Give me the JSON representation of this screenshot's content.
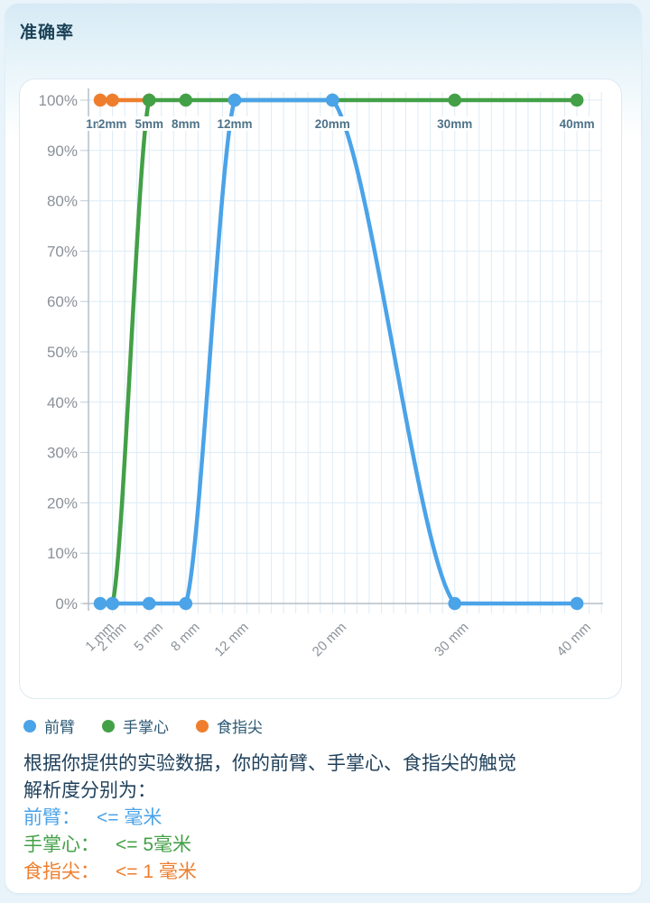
{
  "header": {
    "title": "准确率"
  },
  "chart_data": {
    "type": "line",
    "title": "准确率",
    "xlabel": "",
    "ylabel": "",
    "x_unit": "mm",
    "x": [
      1,
      2,
      5,
      8,
      12,
      20,
      30,
      40
    ],
    "x_tick_labels": [
      "1 mm",
      "2 mm",
      "5 mm",
      "8 mm",
      "12 mm",
      "20 mm",
      "30 mm",
      "40 mm"
    ],
    "point_labels": [
      "1mm",
      "2mm",
      "5mm",
      "8mm",
      "12mm",
      "20mm",
      "30mm",
      "40mm"
    ],
    "y_tick_labels": [
      "0%",
      "10%",
      "20%",
      "30%",
      "40%",
      "50%",
      "60%",
      "70%",
      "80%",
      "90%",
      "100%"
    ],
    "ylim": [
      0,
      100
    ],
    "xlim": [
      0,
      42
    ],
    "grid": true,
    "x_axis_scale": "linear-mm",
    "legend_position": "bottom",
    "series": [
      {
        "id": "forearm",
        "name": "前臂",
        "color": "#4ba3e8",
        "values": [
          0,
          0,
          0,
          0,
          100,
          100,
          0,
          0
        ]
      },
      {
        "id": "palm",
        "name": "手掌心",
        "color": "#43a047",
        "values": [
          null,
          0,
          100,
          100,
          100,
          100,
          100,
          100
        ]
      },
      {
        "id": "fingertip",
        "name": "食指尖",
        "color": "#ee7e2d",
        "values": [
          100,
          100,
          100,
          null,
          null,
          null,
          null,
          null
        ]
      }
    ]
  },
  "legend": {
    "items": [
      {
        "id": "forearm",
        "label": "前臂",
        "color": "#4ba3e8"
      },
      {
        "id": "palm",
        "label": "手掌心",
        "color": "#43a047"
      },
      {
        "id": "fingertip",
        "label": "食指尖",
        "color": "#ee7e2d"
      }
    ]
  },
  "analysis": {
    "line1": "根据你提供的实验数据，你的前臂、手掌心、食指尖的触觉",
    "line2": "解析度分别为：",
    "results": [
      {
        "id": "forearm",
        "label": "前臂：",
        "value": "<= 毫米",
        "color": "#4ba3e8"
      },
      {
        "id": "palm",
        "label": "手掌心：",
        "value": "<= 5毫米",
        "color": "#43a047"
      },
      {
        "id": "fingertip",
        "label": "食指尖：",
        "value": "<= 1 毫米",
        "color": "#ee7e2d"
      }
    ]
  }
}
